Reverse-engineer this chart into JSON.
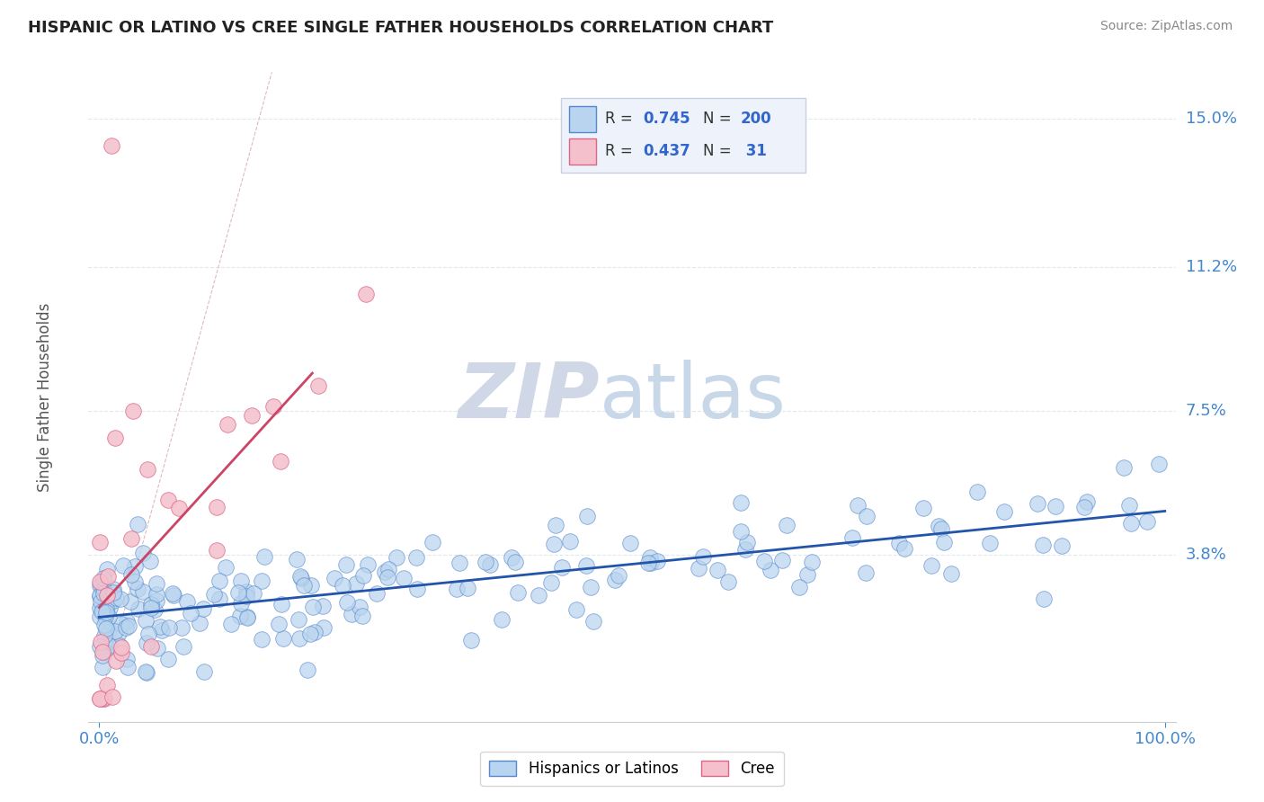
{
  "title": "HISPANIC OR LATINO VS CREE SINGLE FATHER HOUSEHOLDS CORRELATION CHART",
  "source": "Source: ZipAtlas.com",
  "ylabel": "Single Father Households",
  "xticklabels": [
    "0.0%",
    "100.0%"
  ],
  "yticklabels": [
    "3.8%",
    "7.5%",
    "11.2%",
    "15.0%"
  ],
  "ytick_values": [
    0.038,
    0.075,
    0.112,
    0.15
  ],
  "xlim": [
    -0.01,
    1.01
  ],
  "ylim": [
    -0.005,
    0.162
  ],
  "r_blue": 0.745,
  "n_blue": 200,
  "r_pink": 0.437,
  "n_pink": 31,
  "blue_scatter_color": "#b8d4ee",
  "blue_edge_color": "#5588cc",
  "blue_line_color": "#2255aa",
  "pink_scatter_color": "#f4c0cc",
  "pink_edge_color": "#dd6688",
  "pink_line_color": "#cc4466",
  "diag_color": "#ddbbbb",
  "grid_color": "#e0e8f0",
  "title_color": "#222222",
  "axis_label_color": "#555555",
  "tick_color": "#4488cc",
  "source_color": "#888888",
  "watermark_zip_color": "#d0d8e8",
  "watermark_atlas_color": "#c8d8e8",
  "legend_box_facecolor": "#eef2fa",
  "legend_box_edgecolor": "#c8d0e0",
  "legend_text_color": "#333333",
  "legend_value_color": "#3366cc",
  "bottom_legend_label1": "Hispanics or Latinos",
  "bottom_legend_label2": "Cree"
}
